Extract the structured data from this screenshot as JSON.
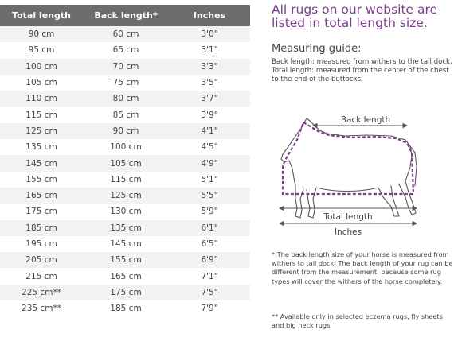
{
  "table": {
    "headers": [
      "Total length",
      "Back length*",
      "Inches"
    ],
    "rows": [
      [
        "90 cm",
        "60 cm",
        "3'0\""
      ],
      [
        "95 cm",
        "65 cm",
        "3'1\""
      ],
      [
        "100 cm",
        "70 cm",
        "3'3\""
      ],
      [
        "105 cm",
        "75 cm",
        "3'5\""
      ],
      [
        "110 cm",
        "80 cm",
        "3'7\""
      ],
      [
        "115 cm",
        "85 cm",
        "3'9\""
      ],
      [
        "125 cm",
        "90 cm",
        "4'1\""
      ],
      [
        "135 cm",
        "100 cm",
        "4'5\""
      ],
      [
        "145 cm",
        "105 cm",
        "4'9\""
      ],
      [
        "155 cm",
        "115 cm",
        "5'1\""
      ],
      [
        "165 cm",
        "125 cm",
        "5'5\""
      ],
      [
        "175 cm",
        "130 cm",
        "5'9\""
      ],
      [
        "185 cm",
        "135 cm",
        "6'1\""
      ],
      [
        "195 cm",
        "145 cm",
        "6'5\""
      ],
      [
        "205 cm",
        "155 cm",
        "6'9\""
      ],
      [
        "215 cm",
        "165 cm",
        "7'1\""
      ],
      [
        "225 cm**",
        "175 cm",
        "7'5\""
      ],
      [
        "235 cm**",
        "185 cm",
        "7'9\""
      ]
    ]
  },
  "headline": "All rugs on our website are listed in total length size.",
  "guide": {
    "title": "Measuring guide:",
    "back_length": "Back length: measured from withers to the tail dock.",
    "total_length": "Total length: measured from the center of the chest to the end of the buttocks."
  },
  "diagram": {
    "back_label": "Back length",
    "total_label": "Total length",
    "inches_label": "Inches",
    "icon": "horse-outline-icon",
    "colors": {
      "rug": "#7b3c8c",
      "outline": "#555555"
    }
  },
  "notes": {
    "back_length_note": "* The back length size of your horse is measured from withers to tail dock. The back length of your rug can be different from the measurement, because some rug types will cover the withers of the horse completely.",
    "eczema_note": "** Available only in selected eczema rugs, fly sheets and big neck rugs."
  },
  "colors": {
    "header_bg": "#6d6d6d",
    "accent": "#7b3c8c",
    "stripe": "#f2f2f2"
  }
}
